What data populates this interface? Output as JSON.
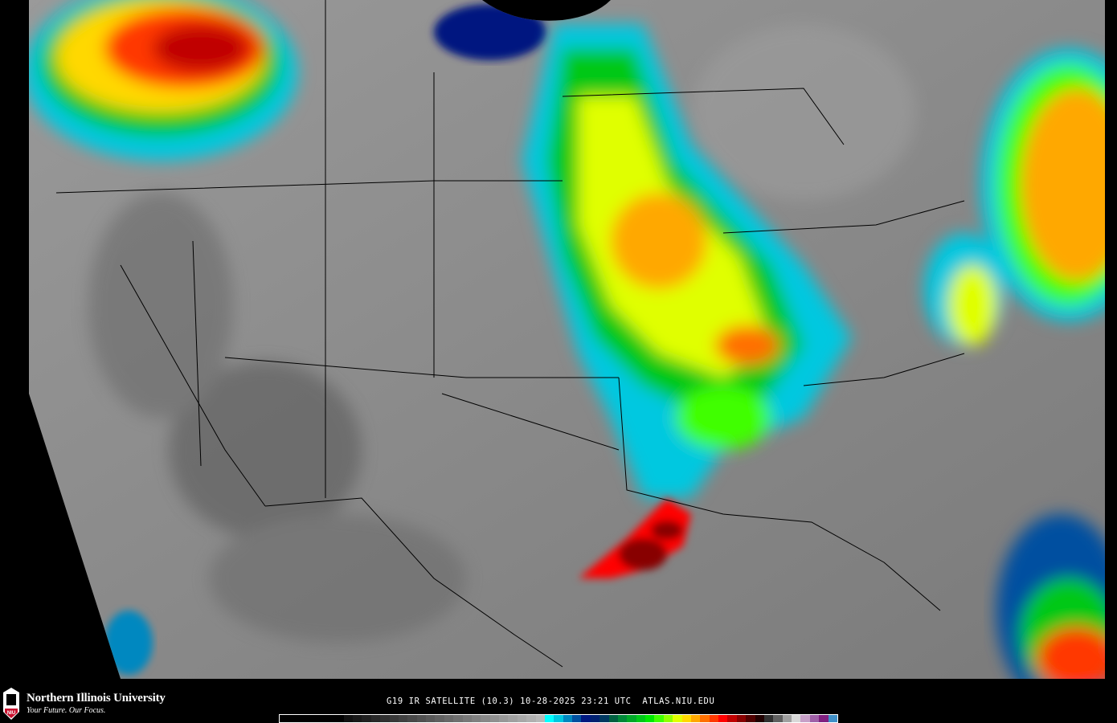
{
  "map": {
    "title": "G19 IR SATELLITE (10.3) 10-28-2025 23:21 UTC  ATLAS.NIU.EDU",
    "background_color": "#000000",
    "land_gray": "#8c8c8c"
  },
  "branding": {
    "university": "Northern Illinois University",
    "tagline": "Your Future. Our Focus.",
    "logo_letters": "NIU",
    "logo_color": "#c8102e"
  },
  "colorbar": {
    "colors": [
      "#000000",
      "#000000",
      "#000000",
      "#000000",
      "#000000",
      "#000000",
      "#000000",
      "#101010",
      "#181818",
      "#202020",
      "#282828",
      "#303030",
      "#383838",
      "#404040",
      "#484848",
      "#505050",
      "#585858",
      "#606060",
      "#686868",
      "#707070",
      "#787878",
      "#808080",
      "#888888",
      "#909090",
      "#989898",
      "#a0a0a0",
      "#a8a8a8",
      "#b0b0b0",
      "#b8b8b8",
      "#00ffff",
      "#00c8e0",
      "#0088c0",
      "#0050a0",
      "#001880",
      "#002070",
      "#003860",
      "#006040",
      "#008838",
      "#00a828",
      "#00c818",
      "#00e800",
      "#40ff00",
      "#90ff00",
      "#e0ff00",
      "#ffd800",
      "#ffa800",
      "#ff7000",
      "#ff3800",
      "#ff0000",
      "#c00000",
      "#880000",
      "#500000",
      "#200000",
      "#303030",
      "#606060",
      "#a0a0a0",
      "#d8d8d8",
      "#c8a0c8",
      "#a060a8",
      "#802080",
      "#4090c8"
    ]
  }
}
